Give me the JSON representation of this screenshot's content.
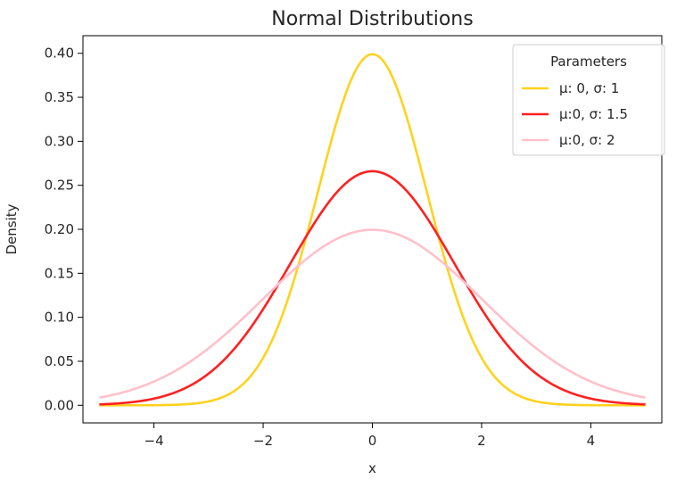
{
  "chart_data": {
    "type": "line",
    "title": "Normal Distributions",
    "xlabel": "x",
    "ylabel": "Density",
    "xlim": [
      -5.3,
      5.3
    ],
    "ylim": [
      -0.02,
      0.42
    ],
    "xticks": [
      -4,
      -2,
      0,
      2,
      4
    ],
    "xtick_labels": [
      "−4",
      "−2",
      "0",
      "2",
      "4"
    ],
    "yticks": [
      0.0,
      0.05,
      0.1,
      0.15,
      0.2,
      0.25,
      0.3,
      0.35,
      0.4
    ],
    "ytick_labels": [
      "0.00",
      "0.05",
      "0.10",
      "0.15",
      "0.20",
      "0.25",
      "0.30",
      "0.35",
      "0.40"
    ],
    "grid": false,
    "legend": {
      "title": "Parameters",
      "placement": "top-right"
    },
    "x_range": [
      -5,
      5
    ],
    "series": [
      {
        "name": "μ: 0, σ: 1",
        "mu": 0,
        "sigma": 1,
        "color": "#ffd21f"
      },
      {
        "name": "μ:0, σ: 1.5",
        "mu": 0,
        "sigma": 1.5,
        "color": "#ff2020"
      },
      {
        "name": "μ:0, σ: 2",
        "mu": 0,
        "sigma": 2,
        "color": "#ffc0cb"
      }
    ]
  }
}
